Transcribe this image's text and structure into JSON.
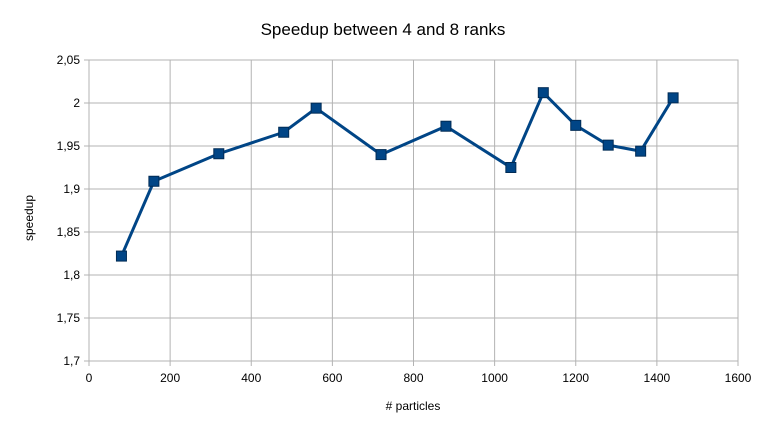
{
  "chart_data": {
    "type": "line",
    "title": "Speedup between 4 and 8 ranks",
    "xlabel": "# particles",
    "ylabel": "speedup",
    "xlim": [
      0,
      1600
    ],
    "ylim": [
      1.7,
      2.05
    ],
    "x_ticks": [
      "0",
      "200",
      "400",
      "600",
      "800",
      "1000",
      "1200",
      "1400",
      "1600"
    ],
    "y_ticks": [
      "1,7",
      "1,75",
      "1,8",
      "1,85",
      "1,9",
      "1,95",
      "2",
      "2,05"
    ],
    "grid": true,
    "legend": "none",
    "series": [
      {
        "color": "#004586",
        "marker": "square",
        "x": [
          80,
          160,
          320,
          480,
          560,
          720,
          880,
          1040,
          1120,
          1200,
          1280,
          1360,
          1440
        ],
        "y": [
          1.822,
          1.909,
          1.941,
          1.966,
          1.994,
          1.94,
          1.973,
          1.925,
          2.012,
          1.974,
          1.951,
          1.944,
          2.006
        ]
      }
    ]
  }
}
